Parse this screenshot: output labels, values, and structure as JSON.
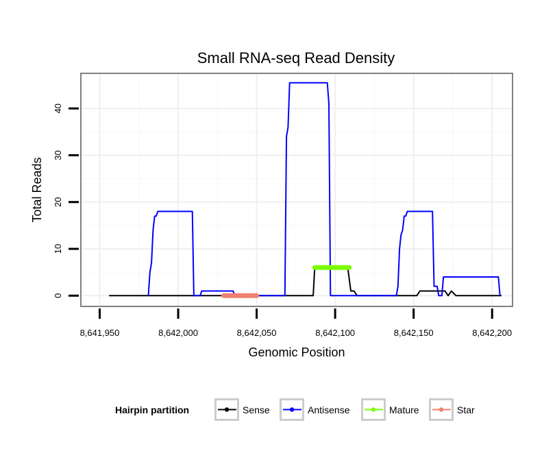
{
  "chart_data": {
    "type": "line",
    "title": "Small RNA-seq Read Density",
    "xlabel": "Genomic Position",
    "ylabel": "Total Reads",
    "xlim": [
      8641938,
      8642213
    ],
    "ylim": [
      -2.3,
      47.5
    ],
    "x_ticks": [
      8641950,
      8642000,
      8642050,
      8642100,
      8642150,
      8642200
    ],
    "x_tick_labels": [
      "8,641,950",
      "8,642,000",
      "8,642,050",
      "8,642,100",
      "8,642,150",
      "8,642,200"
    ],
    "y_ticks": [
      0,
      10,
      20,
      30,
      40
    ],
    "y_tick_labels": [
      "0",
      "10",
      "20",
      "30",
      "40"
    ],
    "grid": true,
    "legend": {
      "title": "Hairpin partition",
      "position": "bottom",
      "entries": [
        {
          "label": "Sense",
          "color": "#000000"
        },
        {
          "label": "Antisense",
          "color": "#0000ff"
        },
        {
          "label": "Mature",
          "color": "#7cfc00"
        },
        {
          "label": "Star",
          "color": "#f08070"
        }
      ]
    },
    "series": [
      {
        "name": "Sense",
        "color": "#000000",
        "width": 2,
        "x": [
          8641956,
          8642086,
          8642087,
          8642108,
          8642110,
          8642112,
          8642114,
          8642152,
          8642154,
          8642170,
          8642172,
          8642174,
          8642177,
          8642206
        ],
        "y": [
          0,
          0,
          6,
          6,
          1,
          1,
          0,
          0,
          1,
          1,
          0,
          1,
          0,
          0
        ]
      },
      {
        "name": "Antisense",
        "color": "#0000ff",
        "width": 2,
        "x": [
          8641981,
          8641982,
          8641983,
          8641984,
          8641985,
          8641986,
          8641987,
          8641988,
          8641989,
          8642009,
          8642010,
          8642014,
          8642015,
          8642035,
          8642036,
          8642068,
          8642069,
          8642070,
          8642071,
          8642095,
          8642096,
          8642097,
          8642139,
          8642140,
          8642141,
          8642142,
          8642143,
          8642144,
          8642145,
          8642146,
          8642147,
          8642148,
          8642162,
          8642163,
          8642165,
          8642166,
          8642168,
          8642169,
          8642204,
          8642205
        ],
        "y": [
          0,
          5,
          7,
          14,
          17,
          17,
          18,
          18,
          18,
          18,
          0,
          0,
          1,
          1,
          0,
          0,
          34,
          36,
          45.5,
          45.5,
          41,
          0,
          0,
          2,
          10,
          13,
          14,
          17,
          17,
          18,
          18,
          18,
          18,
          2,
          2,
          0,
          0,
          4,
          4,
          0
        ]
      },
      {
        "name": "Mature",
        "color": "#7cfc00",
        "width": 7,
        "x": [
          8642087,
          8642109
        ],
        "y": [
          6,
          6
        ]
      },
      {
        "name": "Star",
        "color": "#f08070",
        "width": 7,
        "x": [
          8642029,
          8642050
        ],
        "y": [
          0,
          0
        ]
      }
    ]
  }
}
